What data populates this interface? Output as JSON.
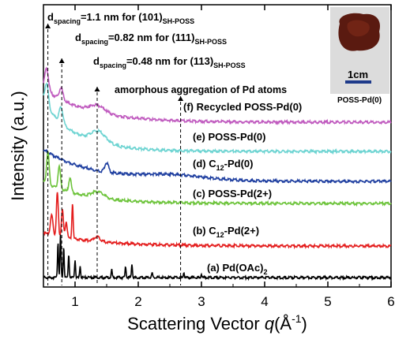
{
  "chart_data": {
    "type": "line",
    "title": "",
    "xlabel_main": "Scattering Vector ",
    "xlabel_var": "q",
    "xlabel_unit": "(Å",
    "xlabel_exp": "-1",
    "xlabel_close": ")",
    "ylabel": "Intensity (a.u.)",
    "xlim": [
      0.5,
      6
    ],
    "xticks": [
      "1",
      "2",
      "3",
      "4",
      "5",
      "6"
    ],
    "grid": false,
    "legend": "inline labels",
    "series": [
      {
        "name": "(f) Recycled POSS-Pd(0)",
        "label_main": "(f) Recycled POSS-Pd(0)",
        "color": "#c05bbf",
        "baseline_start": 112,
        "baseline_end": 155,
        "decay": 0.9,
        "peaks": [
          [
            0.55,
            28,
            0.03
          ],
          [
            0.78,
            15,
            0.03
          ],
          [
            1.35,
            9,
            0.12
          ]
        ]
      },
      {
        "name": "(e) POSS-Pd(0)",
        "label_main": "(e) POSS-Pd(0)",
        "color": "#6ed4d2",
        "baseline_start": 130,
        "baseline_end": 192,
        "decay": 1.2,
        "peaks": [
          [
            0.55,
            30,
            0.03
          ],
          [
            0.78,
            20,
            0.03
          ],
          [
            1.37,
            14,
            0.12
          ]
        ]
      },
      {
        "name": "(d) C12-Pd(0)",
        "label_main": "(d) C",
        "label_sub": "12",
        "label_rest": "-Pd(0)",
        "color": "#1f3fa0",
        "baseline_start": 190,
        "baseline_end": 230,
        "decay": 0.8,
        "peaks": [
          [
            1.5,
            12,
            0.03
          ],
          [
            2.55,
            6,
            0.5
          ]
        ]
      },
      {
        "name": "(c) POSS-Pd(2+)",
        "label_main": "(c) POSS-Pd(2+)",
        "color": "#6ec43c",
        "baseline_start": 230,
        "baseline_end": 258,
        "decay": 1.0,
        "peaks": [
          [
            0.57,
            40,
            0.02
          ],
          [
            0.75,
            28,
            0.02
          ],
          [
            0.92,
            18,
            0.02
          ],
          [
            1.36,
            8,
            0.1
          ]
        ]
      },
      {
        "name": "(b) C12-Pd(2+)",
        "label_main": "(b) C",
        "label_sub": "12",
        "label_rest": "-Pd(2+)",
        "color": "#e41e1e",
        "baseline_start": 295,
        "baseline_end": 312,
        "decay": 0.8,
        "peaks": [
          [
            0.63,
            25,
            0.02
          ],
          [
            0.72,
            55,
            0.015
          ],
          [
            0.8,
            35,
            0.015
          ],
          [
            0.86,
            20,
            0.015
          ],
          [
            0.96,
            45,
            0.01
          ],
          [
            1.35,
            6,
            0.05
          ]
        ]
      },
      {
        "name": "(a) Pd(OAc)2",
        "label_main": "(a) Pd(OAc)",
        "label_sub": "2",
        "label_rest": "",
        "color": "#000000",
        "baseline_start": 352,
        "baseline_end": 352,
        "decay": 0.0,
        "peaks": [
          [
            0.73,
            45,
            0.008
          ],
          [
            0.77,
            55,
            0.008
          ],
          [
            0.82,
            40,
            0.008
          ],
          [
            0.9,
            30,
            0.008
          ],
          [
            1.0,
            22,
            0.008
          ],
          [
            1.08,
            15,
            0.008
          ],
          [
            1.58,
            10,
            0.008
          ],
          [
            1.8,
            14,
            0.008
          ],
          [
            1.9,
            18,
            0.008
          ],
          [
            2.22,
            6,
            0.008
          ],
          [
            2.72,
            7,
            0.008
          ],
          [
            3.0,
            5,
            0.008
          ]
        ]
      }
    ],
    "annotations": [
      {
        "text": "d",
        "sub": "spacing",
        "rest": "=1.1 nm for (101)",
        "tail_sub": "SH-POSS",
        "x": 0.57
      },
      {
        "text": "d",
        "sub": "spacing",
        "rest": "=0.82 nm for (111)",
        "tail_sub": "SH-POSS",
        "x": 0.79
      },
      {
        "text": "d",
        "sub": "spacing",
        "rest": "=0.48 nm for (113)",
        "tail_sub": "SH-POSS",
        "x": 1.35
      },
      {
        "text": "amorphous aggregation of Pd atoms",
        "x": 2.67
      }
    ],
    "inset": {
      "scale_label": "1cm",
      "caption": "POSS-Pd(0)"
    }
  }
}
